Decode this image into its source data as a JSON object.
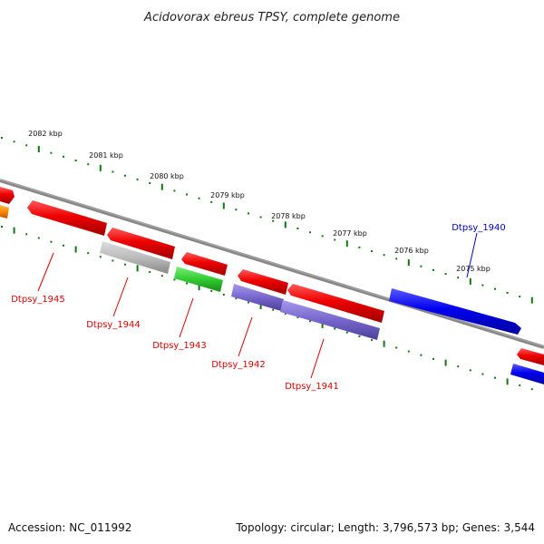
{
  "title": "Acidovorax ebreus TPSY, complete genome",
  "footer": {
    "accession": "Accession: NC_011992",
    "summary": "Topology: circular; Length: 3,796,573 bp; Genes: 3,544"
  },
  "ticks": [
    "2082 kbp",
    "2081 kbp",
    "2080 kbp",
    "2079 kbp",
    "2078 kbp",
    "2077 kbp",
    "2076 kbp",
    "2075 kbp"
  ],
  "genes": [
    {
      "name": "Dtpsy_1945",
      "color": "#dd0000"
    },
    {
      "name": "Dtpsy_1944",
      "color": "#dd0000"
    },
    {
      "name": "Dtpsy_1943",
      "color": "#dd0000"
    },
    {
      "name": "Dtpsy_1942",
      "color": "#dd0000"
    },
    {
      "name": "Dtpsy_1941",
      "color": "#dd0000"
    },
    {
      "name": "Dtpsy_1940",
      "color": "#0000cc"
    }
  ],
  "colors": {
    "cds_red": "#e00000",
    "cds_blue": "#0000e0",
    "rna_gray": "#b8b8b8",
    "trna_green": "#33cc33",
    "purple": "#7766cc",
    "orange": "#ff8800",
    "backbone": "#888888",
    "tick_green": "#117711"
  }
}
